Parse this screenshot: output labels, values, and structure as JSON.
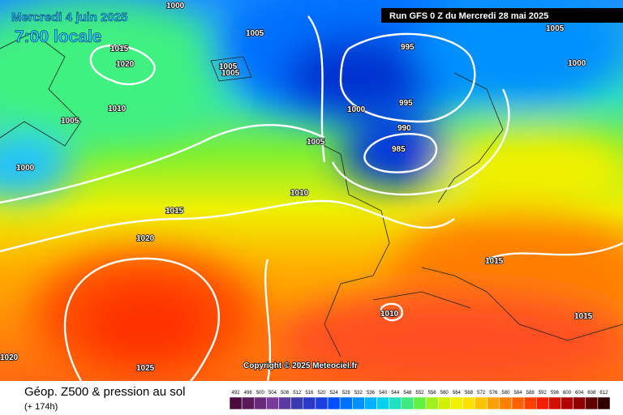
{
  "header": {
    "date": "Mercredi 4 juin 2025",
    "time": "7:00 locale",
    "run": "Run GFS 0 Z du Mercredi 28 mai 2025"
  },
  "isobar_labels": [
    "1000",
    "1005",
    "1015",
    "1020",
    "1005",
    "1005",
    "995",
    "1000",
    "995",
    "1010",
    "1005",
    "990",
    "985",
    "1005",
    "1000",
    "1010",
    "1015",
    "1020",
    "1015",
    "1010",
    "1015",
    "1025",
    "1020",
    "1005",
    "1000"
  ],
  "copyright": "Copyright © 2025 Meteociel.fr",
  "footer": {
    "title": "Géop. Z500 & pression au sol",
    "subtitle": "(+ 174h)"
  },
  "legend": {
    "ticks": [
      492,
      496,
      500,
      504,
      508,
      512,
      516,
      520,
      524,
      528,
      532,
      536,
      540,
      544,
      548,
      552,
      556,
      560,
      564,
      568,
      572,
      576,
      580,
      584,
      588,
      592,
      596,
      600,
      604,
      608,
      612
    ]
  }
}
